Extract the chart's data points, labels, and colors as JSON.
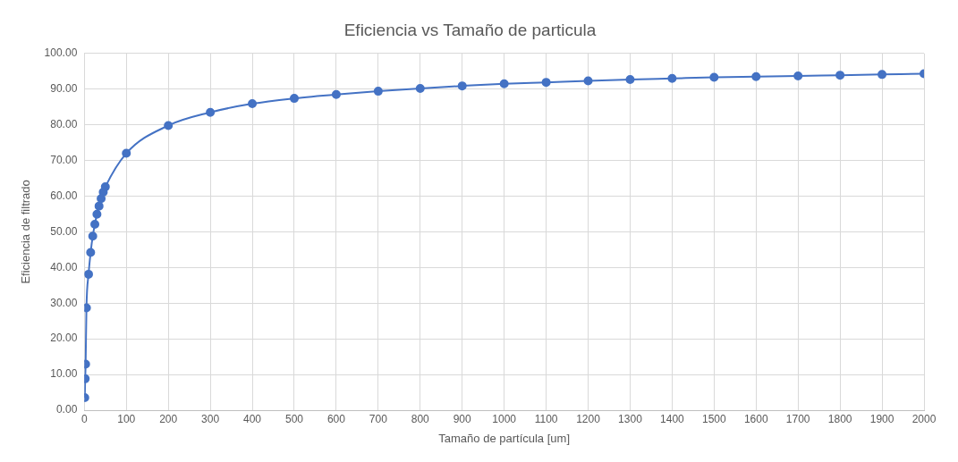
{
  "chart_data": {
    "type": "line",
    "title": "Eficiencia vs Tamaño de particula",
    "xlabel": "Tamaño de partícula [um]",
    "ylabel": "Eficiencia de filtrado",
    "x": [
      1,
      2,
      3,
      5,
      10,
      15,
      20,
      25,
      30,
      35,
      40,
      45,
      50,
      100,
      200,
      300,
      400,
      500,
      600,
      700,
      800,
      900,
      1000,
      1100,
      1200,
      1300,
      1400,
      1500,
      1600,
      1700,
      1800,
      1900,
      2000
    ],
    "series": [
      {
        "color": "#4472c4",
        "values": [
          3.5,
          8.8,
          12.9,
          28.7,
          38.1,
          44.2,
          48.8,
          52.1,
          54.9,
          57.2,
          59.3,
          61.1,
          62.6,
          72.0,
          79.8,
          83.5,
          85.9,
          87.4,
          88.5,
          89.4,
          90.2,
          90.9,
          91.5,
          91.9,
          92.3,
          92.7,
          93.0,
          93.3,
          93.5,
          93.7,
          93.9,
          94.1,
          94.3
        ]
      }
    ],
    "xlim": [
      0,
      2000
    ],
    "xticks": [
      0,
      100,
      200,
      300,
      400,
      500,
      600,
      700,
      800,
      900,
      1000,
      1100,
      1200,
      1300,
      1400,
      1500,
      1600,
      1700,
      1800,
      1900,
      2000
    ],
    "ylim": [
      0,
      100
    ],
    "yticks": [
      {
        "value": 0,
        "label": "0.00"
      },
      {
        "value": 10,
        "label": "10.00"
      },
      {
        "value": 20,
        "label": "20.00"
      },
      {
        "value": 30,
        "label": "30.00"
      },
      {
        "value": 40,
        "label": "40.00"
      },
      {
        "value": 50,
        "label": "50.00"
      },
      {
        "value": 60,
        "label": "60.00"
      },
      {
        "value": 70,
        "label": "70.00"
      },
      {
        "value": 80,
        "label": "80.00"
      },
      {
        "value": 90,
        "label": "90.00"
      },
      {
        "value": 100,
        "label": "100.00"
      }
    ],
    "grid": true,
    "marker": "circle",
    "line_style": "solid",
    "legend": false
  }
}
